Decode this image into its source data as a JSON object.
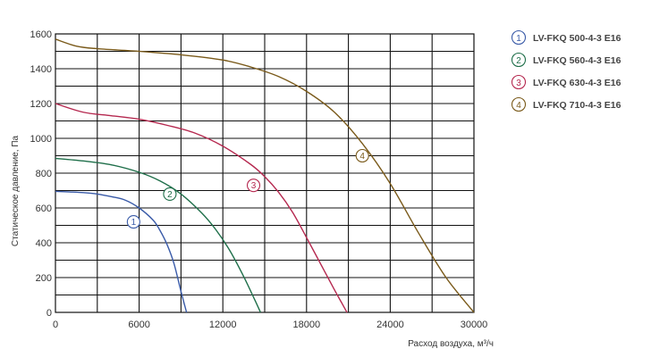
{
  "chart_data": {
    "type": "line",
    "xlabel": "Расход воздуха, м³/ч",
    "ylabel": "Статическое давление, Па",
    "xlim": [
      0,
      30000
    ],
    "ylim": [
      0,
      1600
    ],
    "x_tick_values": [
      0,
      6000,
      12000,
      18000,
      24000,
      30000
    ],
    "x_tick_labels": [
      "0",
      "6000",
      "12000",
      "18000",
      "24000",
      "30000"
    ],
    "y_tick_values": [
      0,
      200,
      400,
      600,
      800,
      1000,
      1200,
      1400,
      1600
    ],
    "y_tick_labels": [
      "0",
      "200",
      "400",
      "600",
      "800",
      "1000",
      "1200",
      "1400",
      "1600"
    ],
    "x_grid_step": 3000,
    "y_grid_step": 100,
    "grid": true,
    "legend_position": "right",
    "series": [
      {
        "name": "LV-FKQ 500-4-3 E16",
        "marker": "1",
        "color": "#3a5ba8",
        "x": [
          0,
          1000,
          2000,
          3000,
          4000,
          5000,
          6000,
          7000,
          7500,
          8000,
          8500,
          9000,
          9400
        ],
        "y": [
          695,
          692,
          688,
          680,
          665,
          645,
          600,
          530,
          470,
          390,
          280,
          120,
          0
        ]
      },
      {
        "name": "LV-FKQ 560-4-3 E16",
        "marker": "2",
        "color": "#1f6f4a",
        "x": [
          0,
          2000,
          4000,
          6000,
          7500,
          9000,
          10500,
          11500,
          12500,
          13500,
          14300,
          14700
        ],
        "y": [
          885,
          870,
          848,
          805,
          755,
          680,
          570,
          475,
          355,
          205,
          70,
          0
        ]
      },
      {
        "name": "LV-FKQ 630-4-3 E16",
        "marker": "3",
        "color": "#b5284f",
        "x": [
          0,
          2000,
          4000,
          6000,
          8000,
          10000,
          12000,
          14000,
          15000,
          16000,
          17000,
          18000,
          19000,
          20000,
          20900
        ],
        "y": [
          1200,
          1150,
          1130,
          1110,
          1075,
          1030,
          955,
          850,
          780,
          690,
          575,
          430,
          280,
          130,
          0
        ]
      },
      {
        "name": "LV-FKQ 710-4-3 E16",
        "marker": "4",
        "color": "#7a5a1a",
        "x": [
          0,
          1500,
          3000,
          6000,
          9000,
          12000,
          14000,
          16000,
          18000,
          20000,
          22000,
          24000,
          26000,
          28000,
          30000
        ],
        "y": [
          1570,
          1530,
          1515,
          1500,
          1480,
          1450,
          1410,
          1355,
          1270,
          1150,
          970,
          740,
          460,
          200,
          0
        ]
      }
    ],
    "curve_markers": [
      {
        "label": "1",
        "x": 5600,
        "y": 520
      },
      {
        "label": "2",
        "x": 8200,
        "y": 680
      },
      {
        "label": "3",
        "x": 14200,
        "y": 730
      },
      {
        "label": "4",
        "x": 22000,
        "y": 900
      }
    ]
  }
}
